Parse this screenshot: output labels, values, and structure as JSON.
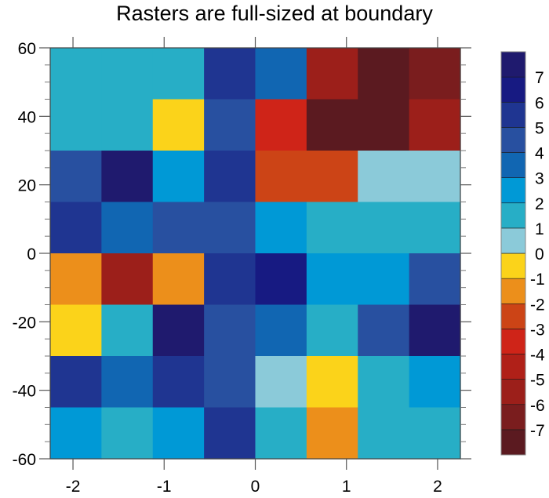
{
  "chart_data": {
    "type": "heatmap",
    "title": "Rasters are full-sized at boundary",
    "xlabel": "",
    "ylabel": "",
    "xlim": [
      -2.25,
      2.25
    ],
    "ylim": [
      -60,
      60
    ],
    "x_ticks": [
      -2,
      -1,
      0,
      1,
      2
    ],
    "x_tick_labels": [
      "-2",
      "-1",
      "0",
      "1",
      "2"
    ],
    "y_ticks": [
      60,
      40,
      20,
      0,
      -20,
      -40,
      -60
    ],
    "y_tick_labels": [
      "60",
      "40",
      "20",
      "0",
      "-20",
      "-40",
      "-60"
    ],
    "y_minor_step": 5,
    "x_minor_step": 0,
    "grid": false,
    "columns": 8,
    "rows": 8,
    "row_order": "top-to-bottom",
    "values": [
      [
        1.5,
        1.5,
        1.5,
        5.5,
        3.5,
        -5.5,
        -7.5,
        -6.5
      ],
      [
        1.5,
        1.5,
        -0.5,
        4.5,
        -3.5,
        -7.5,
        -7.5,
        -5.5
      ],
      [
        4.5,
        7.5,
        2.5,
        5.5,
        -2.5,
        -2.5,
        0.5,
        0.5
      ],
      [
        5.5,
        3.5,
        4.5,
        4.5,
        2.5,
        1.5,
        1.5,
        1.5
      ],
      [
        -1.5,
        -5.5,
        -1.5,
        5.5,
        6.5,
        2.5,
        2.5,
        4.5
      ],
      [
        -0.5,
        1.5,
        7.5,
        4.5,
        3.5,
        1.5,
        4.5,
        7.5
      ],
      [
        5.5,
        3.5,
        5.5,
        4.5,
        0.5,
        -0.5,
        1.5,
        2.5
      ],
      [
        2.5,
        1.5,
        2.5,
        5.5,
        1.5,
        -1.5,
        1.5,
        1.5
      ]
    ],
    "colorbar": {
      "placement": "right",
      "levels": [
        -7,
        -6,
        -5,
        -4,
        -3,
        -2,
        -1,
        0,
        1,
        2,
        3,
        4,
        5,
        6,
        7
      ],
      "labels": [
        "-7",
        "-6",
        "-5",
        "-4",
        "-3",
        "-2",
        "-1",
        "0",
        "1",
        "2",
        "3",
        "4",
        "5",
        "6",
        "7"
      ],
      "colors": [
        "#5b1a20",
        "#7a1d1e",
        "#9c1f1a",
        "#b02018",
        "#cf2418",
        "#cc4416",
        "#ec8f1b",
        "#fbd31a",
        "#8bcad9",
        "#27aec6",
        "#0099d6",
        "#1166b2",
        "#2850a0",
        "#1f3591",
        "#171a82",
        "#1f1a6e"
      ]
    }
  }
}
